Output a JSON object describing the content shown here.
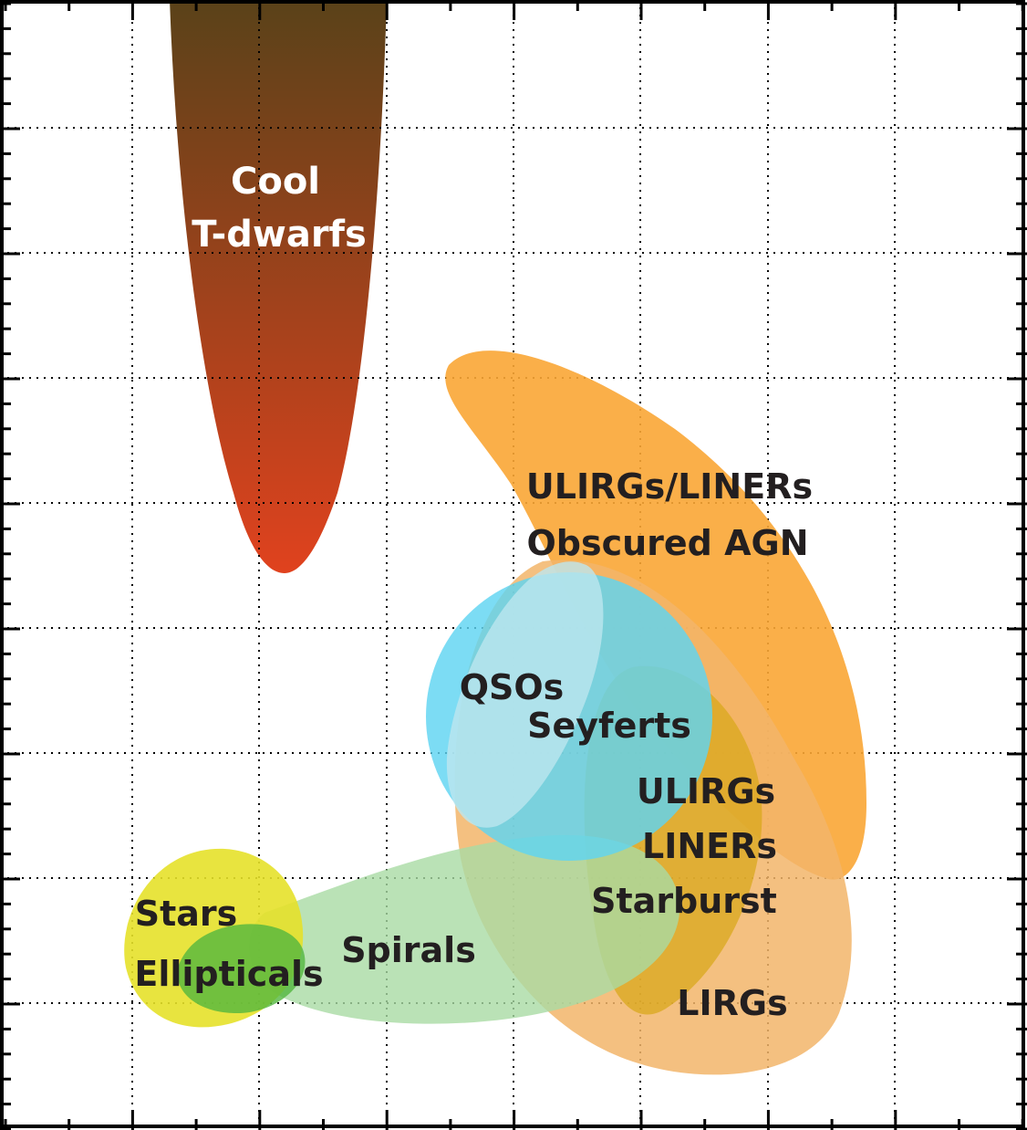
{
  "labels": {
    "cool_t_dwarfs": [
      "Cool",
      "T-dwarfs"
    ],
    "ulirgs_liners_agn": [
      "ULIRGs/LINERs",
      "Obscured AGN"
    ],
    "qsos": "QSOs",
    "seyferts": "Seyferts",
    "ulirgs_liners_starburst": [
      "ULIRGs",
      "LINERs",
      "Starburst"
    ],
    "lirgs": "LIRGs",
    "spirals": "Spirals",
    "stars_ellipticals": [
      "Stars",
      "Ellipticals"
    ]
  },
  "colors": {
    "t_dwarf_top": "#5a4219",
    "t_dwarf_bottom": "#e0421e",
    "ulirg_agn": "#faa635",
    "lirg": "#f2b56a",
    "starburst": "#d9a81c",
    "qso": "#5fd4f2",
    "seyfert": "#bde6ef",
    "spiral": "#a9dba4",
    "stars": "#e6e12a",
    "elliptical": "#52b63e"
  },
  "grid": {
    "on": true,
    "style": "dotted"
  }
}
